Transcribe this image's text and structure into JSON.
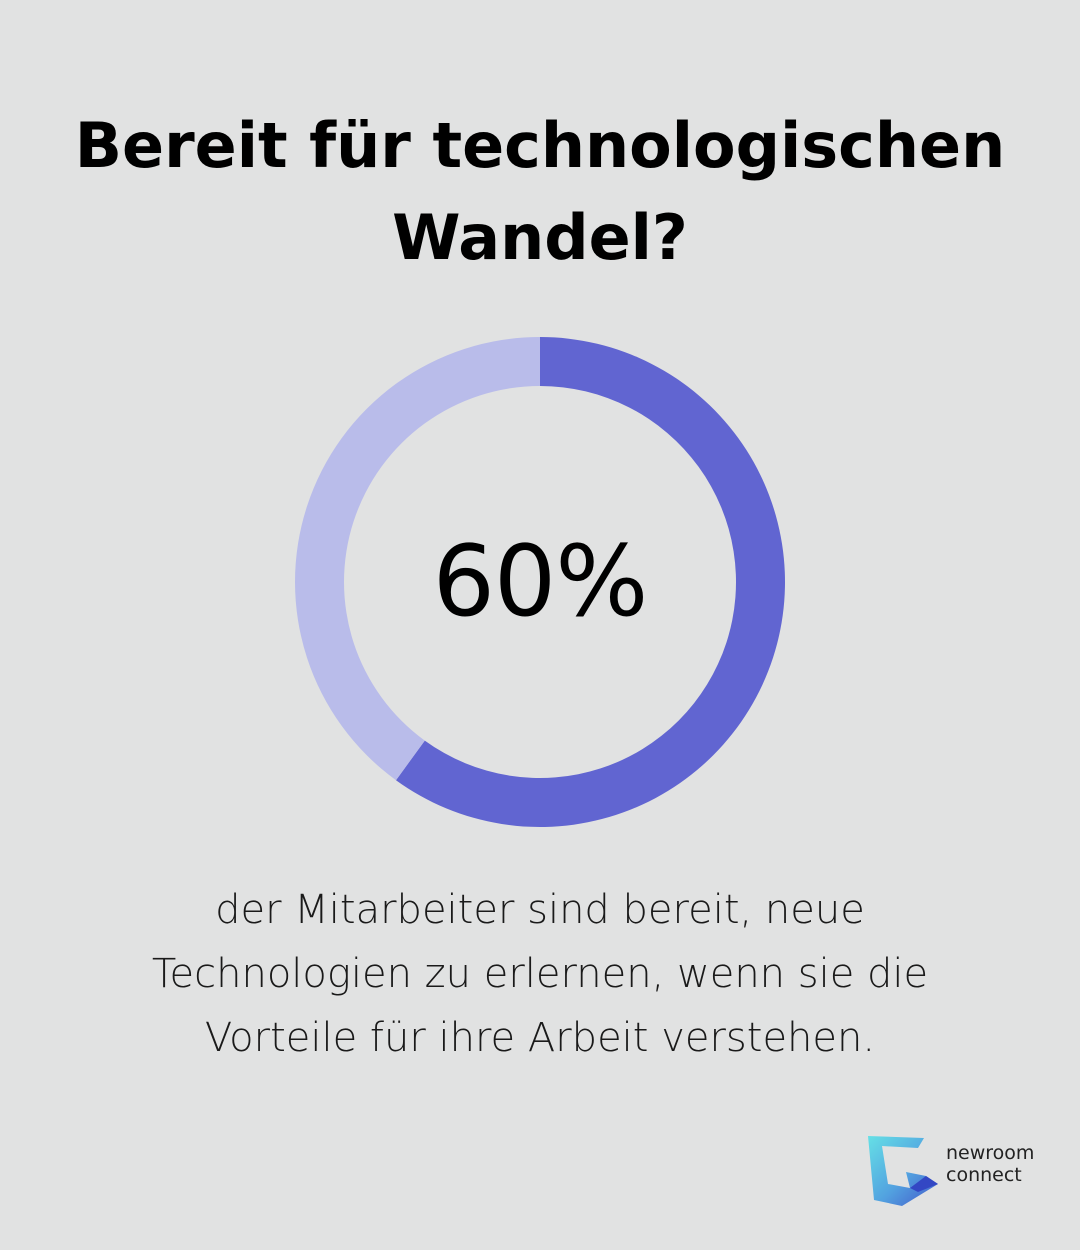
{
  "title_lines": [
    "Bereit für technologischen",
    "Wandel?"
  ],
  "chart_data": {
    "type": "pie",
    "value_label": "60%",
    "values": [
      60,
      40
    ],
    "colors": [
      "#6165d1",
      "#b9bcea"
    ]
  },
  "description_lines": [
    "der Mitarbeiter sind bereit, neue",
    "Technologien zu erlernen, wenn sie die",
    "Vorteile für ihre Arbeit verstehen."
  ],
  "logo": {
    "line1": "newroom",
    "line2": "connect",
    "icon": "newroom-connect-logo-icon"
  }
}
